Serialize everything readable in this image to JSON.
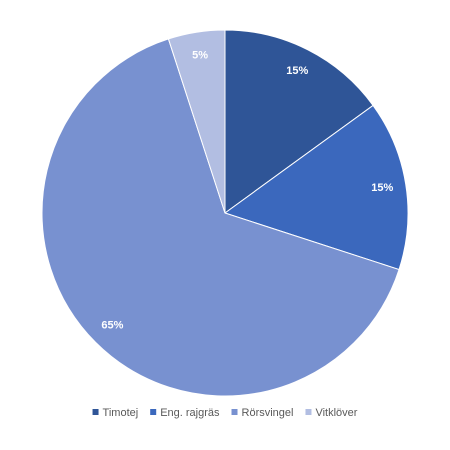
{
  "chart_data": {
    "type": "pie",
    "categories": [
      "Timotej",
      "Eng. rajgräs",
      "Rörsvingel",
      "Vitklöver"
    ],
    "values": [
      15,
      15,
      65,
      5
    ],
    "value_labels": [
      "15%",
      "15%",
      "65%",
      "5%"
    ],
    "colors": [
      "#2f5597",
      "#3b68bd",
      "#7891d0",
      "#b2bee2"
    ],
    "legend": "bottom"
  }
}
